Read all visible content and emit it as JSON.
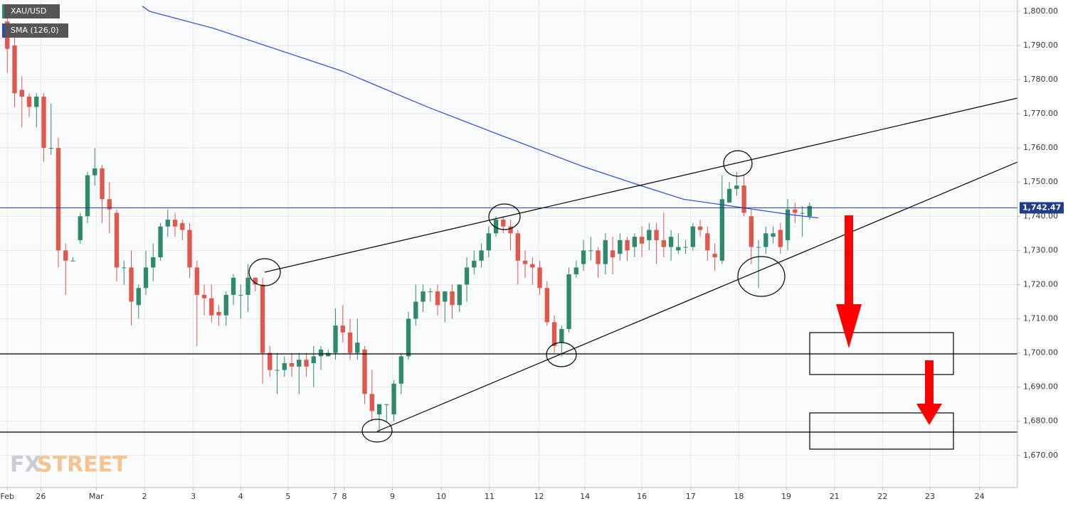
{
  "chart_data": {
    "type": "candlestick",
    "series": [
      {
        "name": "XAU/USD",
        "up_color": "#2f8a6c",
        "down_color": "#e0574b",
        "open": [
          1797,
          1790,
          1777,
          1775,
          1772,
          1775,
          1760,
          1760,
          1730,
          1727,
          1733,
          1740,
          1752,
          1754,
          1745,
          1741,
          1725,
          1725,
          1714,
          1719,
          1725,
          1728,
          1737,
          1739,
          1738,
          1736,
          1725,
          1717,
          1716,
          1712,
          1711,
          1717,
          1717,
          1717,
          1722,
          1720,
          1700,
          1695,
          1695,
          1697,
          1696,
          1698,
          1697,
          1699,
          1699,
          1700,
          1708,
          1706,
          1700,
          1701,
          1688,
          1682,
          1685,
          1682,
          1691,
          1699,
          1710,
          1715,
          1718,
          1718,
          1715,
          1718,
          1714,
          1720,
          1725,
          1727,
          1730,
          1735,
          1739,
          1737,
          1735,
          1727,
          1726,
          1725,
          1719,
          1709,
          1703,
          1707,
          1723,
          1726,
          1730,
          1730,
          1726,
          1730,
          1729,
          1733,
          1731,
          1734,
          1733,
          1736,
          1733,
          1731,
          1730,
          1731,
          1731,
          1737,
          1735,
          1729,
          1727,
          1744,
          1748,
          1749,
          1740,
          1731,
          1731,
          1734,
          1736,
          1733,
          1742,
          1741,
          1740
        ],
        "high": [
          1800,
          1794,
          1781,
          1776,
          1776,
          1776,
          1773,
          1763,
          1732,
          1728,
          1741,
          1753,
          1760,
          1755,
          1750,
          1742,
          1727,
          1730,
          1720,
          1730,
          1732,
          1738,
          1742,
          1741,
          1739,
          1738,
          1727,
          1720,
          1720,
          1714,
          1718,
          1723,
          1720,
          1726,
          1722,
          1722,
          1702,
          1700,
          1699,
          1700,
          1700,
          1700,
          1702,
          1702,
          1701,
          1713,
          1714,
          1710,
          1710,
          1702,
          1695,
          1685,
          1685,
          1692,
          1700,
          1712,
          1720,
          1720,
          1719,
          1720,
          1718,
          1720,
          1720,
          1728,
          1730,
          1732,
          1737,
          1740,
          1740,
          1739,
          1736,
          1730,
          1728,
          1727,
          1721,
          1711,
          1708,
          1725,
          1727,
          1733,
          1734,
          1731,
          1735,
          1734,
          1735,
          1734,
          1735,
          1737,
          1738,
          1738,
          1741,
          1736,
          1735,
          1733,
          1738,
          1739,
          1737,
          1732,
          1752,
          1750,
          1753,
          1752,
          1742,
          1733,
          1737,
          1737,
          1738,
          1745,
          1744,
          1743,
          1744
        ],
        "low": [
          1782,
          1772,
          1766,
          1769,
          1766,
          1756,
          1758,
          1725,
          1717,
          1727,
          1732,
          1738,
          1749,
          1738,
          1735,
          1721,
          1720,
          1708,
          1710,
          1717,
          1721,
          1727,
          1734,
          1734,
          1733,
          1722,
          1702,
          1711,
          1709,
          1708,
          1708,
          1714,
          1710,
          1712,
          1718,
          1691,
          1693,
          1688,
          1693,
          1693,
          1688,
          1693,
          1690,
          1695,
          1699,
          1698,
          1703,
          1698,
          1698,
          1685,
          1680,
          1677,
          1680,
          1680,
          1688,
          1698,
          1708,
          1712,
          1715,
          1711,
          1709,
          1710,
          1712,
          1715,
          1723,
          1725,
          1728,
          1734,
          1735,
          1730,
          1720,
          1722,
          1720,
          1717,
          1708,
          1700,
          1699,
          1706,
          1722,
          1724,
          1727,
          1722,
          1723,
          1723,
          1727,
          1727,
          1728,
          1728,
          1730,
          1726,
          1728,
          1727,
          1729,
          1729,
          1730,
          1734,
          1727,
          1724,
          1726,
          1744,
          1746,
          1740,
          1726,
          1719,
          1729,
          1732,
          1729,
          1730,
          1738,
          1734,
          1739
        ],
        "close": [
          1789,
          1776,
          1775,
          1772,
          1775,
          1760,
          1760,
          1730,
          1727,
          1727,
          1740,
          1752,
          1754,
          1745,
          1742,
          1725,
          1725,
          1715,
          1719,
          1725,
          1728,
          1737,
          1739,
          1737,
          1736,
          1725,
          1717,
          1716,
          1711,
          1711,
          1717,
          1722,
          1717,
          1722,
          1720,
          1700,
          1695,
          1695,
          1697,
          1696,
          1698,
          1696,
          1699,
          1701,
          1700,
          1708,
          1706,
          1700,
          1703,
          1688,
          1683,
          1685,
          1685,
          1691,
          1699,
          1710,
          1715,
          1718,
          1718,
          1714,
          1718,
          1714,
          1720,
          1725,
          1727,
          1730,
          1735,
          1739,
          1737,
          1735,
          1727,
          1726,
          1725,
          1719,
          1709,
          1702,
          1707,
          1723,
          1725,
          1730,
          1730,
          1726,
          1733,
          1728,
          1733,
          1730,
          1734,
          1732,
          1736,
          1733,
          1731,
          1734,
          1731,
          1731,
          1737,
          1736,
          1730,
          1728,
          1745,
          1748,
          1749,
          1741,
          1731,
          1731,
          1735,
          1735,
          1731,
          1742,
          1741,
          1741,
          1743
        ]
      }
    ],
    "sma": {
      "name": "SMA (126,0)",
      "color": "#2a45d8",
      "x": [
        18.5,
        19.5,
        28.3,
        45.9,
        57.6,
        67.3,
        79,
        86.8,
        92.7,
        100.5,
        107.3,
        111.2
      ],
      "values": [
        1801.5,
        1800,
        1795,
        1782.5,
        1772,
        1764,
        1754.5,
        1749,
        1745,
        1742.6,
        1740.5,
        1739.5
      ]
    },
    "last_price": {
      "value": 1742.47,
      "label": "1,742.47",
      "color": "#1f3d8a"
    },
    "xlim": [
      -1,
      138.5
    ],
    "ylim": [
      1660.6,
      1803.3
    ],
    "xticks": [
      {
        "value": 0,
        "label": "Feb"
      },
      {
        "value": 4.6,
        "label": "26"
      },
      {
        "value": 12.2,
        "label": "Mar"
      },
      {
        "value": 18.8,
        "label": "2"
      },
      {
        "value": 25.5,
        "label": "3"
      },
      {
        "value": 32,
        "label": "4"
      },
      {
        "value": 38.5,
        "label": "5"
      },
      {
        "value": 44.9,
        "label": "7"
      },
      {
        "value": 46.2,
        "label": "8"
      },
      {
        "value": 52.8,
        "label": "9"
      },
      {
        "value": 59.5,
        "label": "10"
      },
      {
        "value": 66.1,
        "label": "11"
      },
      {
        "value": 72.9,
        "label": "12"
      },
      {
        "value": 79.2,
        "label": "14"
      },
      {
        "value": 87,
        "label": "16"
      },
      {
        "value": 93.7,
        "label": "17"
      },
      {
        "value": 100.3,
        "label": "18"
      },
      {
        "value": 106.8,
        "label": "19"
      },
      {
        "value": 113.4,
        "label": "21"
      },
      {
        "value": 120,
        "label": "22"
      },
      {
        "value": 126.5,
        "label": "23"
      },
      {
        "value": 133.3,
        "label": "24"
      }
    ],
    "yticks": [
      {
        "value": 1670,
        "label": "1,670.00"
      },
      {
        "value": 1680,
        "label": "1,680.00"
      },
      {
        "value": 1690,
        "label": "1,690.00"
      },
      {
        "value": 1700,
        "label": "1,700.00"
      },
      {
        "value": 1710,
        "label": "1,710.00"
      },
      {
        "value": 1720,
        "label": "1,720.00"
      },
      {
        "value": 1730,
        "label": "1,730.00"
      },
      {
        "value": 1740,
        "label": "1,740.00"
      },
      {
        "value": 1750,
        "label": "1,750.00"
      },
      {
        "value": 1760,
        "label": "1,760.00"
      },
      {
        "value": 1770,
        "label": "1,770.00"
      },
      {
        "value": 1780,
        "label": "1,780.00"
      },
      {
        "value": 1790,
        "label": "1,790.00"
      },
      {
        "value": 1800,
        "label": "1,800.00"
      }
    ],
    "grid": true,
    "watermark": {
      "prefix": "FX",
      "suffix": "STREET"
    }
  }
}
